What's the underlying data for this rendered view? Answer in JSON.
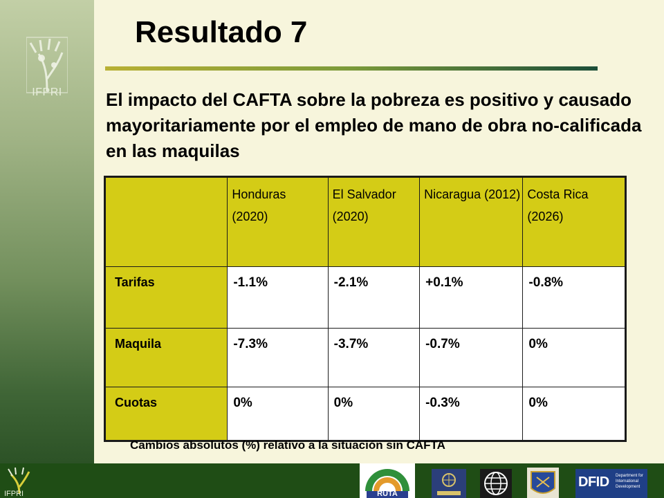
{
  "sidebar": {
    "logo_text": "IFPRI"
  },
  "title": "Resultado 7",
  "subtitle": "El impacto del CAFTA sobre la pobreza es positivo y causado mayoritariamente por el empleo de mano de obra no-calificada en las maquilas",
  "table": {
    "headers": [
      "",
      "Honduras\n(2020)",
      "El Salvador\n(2020)",
      "Nicaragua (2012)",
      "Costa Rica\n(2026)"
    ],
    "rows": [
      {
        "label": "Tarifas",
        "values": [
          "-1.1%",
          "-2.1%",
          "+0.1%",
          "-0.8%"
        ]
      },
      {
        "label": "Maquila",
        "values": [
          "-7.3%",
          "-3.7%",
          "-0.7%",
          "0%"
        ]
      },
      {
        "label": "Cuotas",
        "values": [
          "0%",
          "0%",
          "-0.3%",
          "0%"
        ]
      }
    ]
  },
  "note": "Cambios absolutos (%) relativo a la situación sin CAFTA",
  "footer": {
    "logos": [
      {
        "name": "ifpri-logo",
        "text": "IFPRI"
      },
      {
        "name": "ruta-logo",
        "text": "RUTA"
      },
      {
        "name": "eclac-logo",
        "text": ""
      },
      {
        "name": "world-bank-logo",
        "text": ""
      },
      {
        "name": "idb-logo",
        "text": ""
      },
      {
        "name": "dfid-logo",
        "text": "DFID",
        "subtext": "Department for International Development"
      }
    ]
  },
  "colors": {
    "accent_yellow": "#d4cc16",
    "footer_green": "#1f4d15",
    "background": "#f7f5dc"
  }
}
